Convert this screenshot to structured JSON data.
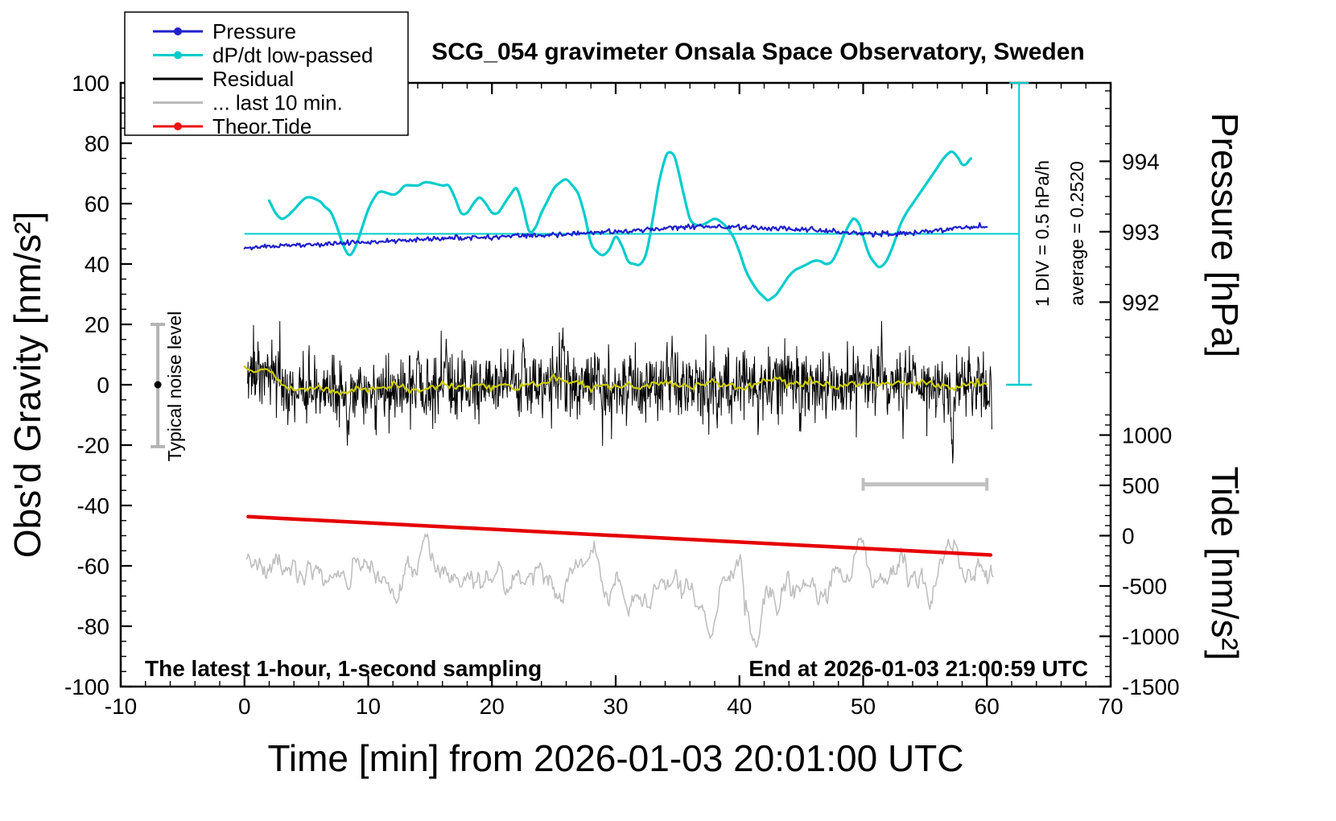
{
  "title": "SCG_054 gravimeter Onsala Space Observatory, Sweden",
  "footer_left": "The latest 1-hour, 1-second sampling",
  "footer_right": "End at 2026-01-03 21:00:59 UTC",
  "axes": {
    "x": {
      "label": "Time [min] from 2026-01-03 20:01:00 UTC",
      "min": -10,
      "max": 70,
      "major": 10,
      "minor": 2,
      "ticks": [
        -10,
        0,
        10,
        20,
        30,
        40,
        50,
        60,
        70
      ]
    },
    "gravity": {
      "label": "Obs'd Gravity [nm/s²]",
      "min": -100,
      "max": 100,
      "major": 20,
      "minor": 5,
      "ticks": [
        -100,
        -80,
        -60,
        -40,
        -20,
        0,
        20,
        40,
        60,
        80,
        100
      ]
    },
    "pressure": {
      "label": "Pressure [hPa]",
      "ticks": [
        992,
        993,
        994
      ],
      "minor_step": 0.25,
      "anchor_hpa": 993,
      "anchor_gravity": 50.7,
      "gravity_per_hpa": 23.33
    },
    "tide": {
      "label": "Tide [nm/s²]",
      "ticks": [
        1000,
        500,
        0,
        -500,
        -1000,
        -1500
      ],
      "minor_step": 100,
      "anchor_tide": 0,
      "anchor_gravity": -50,
      "gravity_per_tide": 0.0333333
    }
  },
  "legend": {
    "items": [
      {
        "label": "Pressure",
        "color": "#2020cc",
        "marker": true
      },
      {
        "label": "dP/dt low-passed",
        "color": "#00cccc",
        "marker": true
      },
      {
        "label": "Residual",
        "color": "#000000",
        "marker": false
      },
      {
        "label": "... last 10 min.",
        "color": "#bbbbbb",
        "marker": false
      },
      {
        "label": "Theor.Tide",
        "color": "#ee1111",
        "marker": true
      }
    ]
  },
  "annotations": {
    "div_scale_label": "1 DIV = 0.5 hPa/h",
    "average_label": "average = 0.2520",
    "noise_label": "Typical noise level",
    "noise_bar": {
      "x": -7,
      "y_low": -20.5,
      "y_high": 20,
      "y_dot": 0,
      "color": "#b4b4b4"
    },
    "div_scale": {
      "x": 62.6,
      "g_bottom": 0,
      "g_top": 100,
      "color": "#00cccc"
    },
    "mean_line": {
      "y": 50,
      "x1": 0,
      "x2": 62.6,
      "color": "#00cccc"
    },
    "gray_scalebar": {
      "x1": 50,
      "x2": 60,
      "y": -33,
      "color": "#c0c0c0"
    }
  },
  "chart_data": {
    "type": "line",
    "title": "SCG_054 gravimeter Onsala Space Observatory, Sweden",
    "xlabel": "Time [min] from 2026-01-03 20:01:00 UTC",
    "ylabel_left": "Obs'd Gravity [nm/s²]",
    "ylabel_right_top": "Pressure [hPa]",
    "ylabel_right_bottom": "Tide [nm/s²]",
    "x_range": [
      -10,
      70
    ],
    "gravity_range": [
      -100,
      100
    ],
    "grid": false,
    "legend_position": "top-left",
    "series": [
      {
        "id": "pressure",
        "name": "Pressure",
        "axis": "pressure",
        "color": "#2020cc",
        "width": 2.2,
        "x_start": 0,
        "x_step": 1,
        "values_hpa": [
          992.78,
          992.785,
          992.79,
          992.8,
          992.81,
          992.815,
          992.825,
          992.83,
          992.84,
          992.85,
          992.855,
          992.86,
          992.87,
          992.875,
          992.885,
          992.89,
          992.9,
          992.91,
          992.915,
          992.92,
          992.93,
          992.935,
          992.94,
          992.945,
          992.95,
          992.955,
          992.965,
          992.975,
          992.985,
          992.99,
          993.0,
          993.01,
          993.02,
          993.03,
          993.045,
          993.055,
          993.065,
          993.075,
          993.08,
          993.075,
          993.065,
          993.055,
          993.05,
          993.045,
          993.04,
          993.03,
          993.02,
          993.01,
          993.0,
          992.985,
          992.975,
          992.97,
          992.96,
          992.97,
          992.985,
          993.0,
          993.02,
          993.04,
          993.06,
          993.075,
          993.08
        ],
        "render": {
          "densify": 620,
          "jitter": 0.38,
          "seed": 11
        }
      },
      {
        "id": "dpdt",
        "name": "dP/dt low-passed",
        "axis": "gravity",
        "color": "#00cccc",
        "width": 3.2,
        "points": [
          [
            2,
            61
          ],
          [
            2.5,
            57
          ],
          [
            3,
            55
          ],
          [
            3.5,
            56
          ],
          [
            4,
            58
          ],
          [
            5,
            62
          ],
          [
            6,
            61
          ],
          [
            6.5,
            59
          ],
          [
            7,
            57
          ],
          [
            7.5,
            52
          ],
          [
            8,
            46
          ],
          [
            8.5,
            43
          ],
          [
            9,
            46
          ],
          [
            9.5,
            52
          ],
          [
            10,
            58
          ],
          [
            10.5,
            62
          ],
          [
            11,
            64
          ],
          [
            12,
            63
          ],
          [
            12.5,
            64
          ],
          [
            13,
            66
          ],
          [
            14,
            66
          ],
          [
            14.5,
            67
          ],
          [
            15,
            67
          ],
          [
            16,
            66
          ],
          [
            16.5,
            66
          ],
          [
            17,
            62
          ],
          [
            17.5,
            57
          ],
          [
            18,
            57
          ],
          [
            18.5,
            60
          ],
          [
            19,
            62
          ],
          [
            19.5,
            60
          ],
          [
            20,
            57
          ],
          [
            20.5,
            57
          ],
          [
            21,
            60
          ],
          [
            21.5,
            63
          ],
          [
            22,
            65
          ],
          [
            22.5,
            59
          ],
          [
            23,
            51
          ],
          [
            23.5,
            52
          ],
          [
            24,
            57
          ],
          [
            24.5,
            61
          ],
          [
            25,
            65
          ],
          [
            25.5,
            67
          ],
          [
            26,
            68
          ],
          [
            26.5,
            66
          ],
          [
            27,
            63
          ],
          [
            27.5,
            56
          ],
          [
            28,
            47
          ],
          [
            28.5,
            44
          ],
          [
            29,
            43
          ],
          [
            29.5,
            45
          ],
          [
            30,
            49
          ],
          [
            30.5,
            46
          ],
          [
            31,
            41
          ],
          [
            31.5,
            40
          ],
          [
            32,
            40
          ],
          [
            32.5,
            44
          ],
          [
            33,
            55
          ],
          [
            33.5,
            67
          ],
          [
            34,
            75
          ],
          [
            34.3,
            77
          ],
          [
            34.7,
            76
          ],
          [
            35,
            72
          ],
          [
            35.5,
            63
          ],
          [
            36,
            55
          ],
          [
            36.5,
            53
          ],
          [
            37,
            53
          ],
          [
            37.5,
            54
          ],
          [
            38,
            55
          ],
          [
            38.5,
            54
          ],
          [
            39,
            52
          ],
          [
            39.5,
            49
          ],
          [
            40,
            44
          ],
          [
            40.5,
            38
          ],
          [
            41,
            34
          ],
          [
            41.5,
            31
          ],
          [
            42,
            29
          ],
          [
            42.3,
            28
          ],
          [
            42.7,
            29
          ],
          [
            43,
            30
          ],
          [
            43.5,
            33
          ],
          [
            44,
            36
          ],
          [
            44.5,
            38
          ],
          [
            45,
            39
          ],
          [
            45.5,
            40
          ],
          [
            46,
            41
          ],
          [
            46.5,
            41
          ],
          [
            47,
            40
          ],
          [
            47.5,
            41
          ],
          [
            48,
            45
          ],
          [
            48.5,
            50
          ],
          [
            49,
            54
          ],
          [
            49.3,
            55
          ],
          [
            49.7,
            53
          ],
          [
            50,
            49
          ],
          [
            50.5,
            43
          ],
          [
            51,
            40
          ],
          [
            51.3,
            39
          ],
          [
            51.7,
            40
          ],
          [
            52,
            42
          ],
          [
            52.5,
            47
          ],
          [
            53,
            53
          ],
          [
            53.5,
            57
          ],
          [
            54,
            60
          ],
          [
            54.5,
            63
          ],
          [
            55,
            66
          ],
          [
            55.5,
            69
          ],
          [
            56,
            72
          ],
          [
            56.5,
            75
          ],
          [
            57,
            77
          ],
          [
            57.3,
            77
          ],
          [
            57.7,
            75
          ],
          [
            58,
            73
          ],
          [
            58.3,
            73
          ],
          [
            58.5,
            74
          ],
          [
            58.7,
            75
          ]
        ],
        "render": {
          "smooth": true
        }
      },
      {
        "id": "residual",
        "name": "Residual",
        "axis": "gravity",
        "color": "#000000",
        "width": 1,
        "generator": {
          "kind": "noise",
          "seed": 42,
          "n": 1500,
          "x_start": 0.25,
          "x_end": 60.4,
          "std": 5.5,
          "spike_prob": 0.03,
          "spike_std": 9,
          "clamp": [
            -27,
            21
          ],
          "baseline": "residual_mean",
          "anchors": [
            {
              "x": 8.4,
              "a": -17,
              "w": 0.15
            },
            {
              "x": 10.6,
              "a": -10,
              "w": 0.1
            },
            {
              "x": 14.0,
              "a": 13,
              "w": 0.12
            },
            {
              "x": 16.3,
              "a": 12,
              "w": 0.1
            },
            {
              "x": 22.5,
              "a": 11,
              "w": 0.1
            },
            {
              "x": 25.7,
              "a": 12,
              "w": 0.1
            },
            {
              "x": 28.9,
              "a": -11,
              "w": 0.12
            },
            {
              "x": 34.6,
              "a": 11,
              "w": 0.1
            },
            {
              "x": 38.2,
              "a": -10,
              "w": 0.1
            },
            {
              "x": 41.5,
              "a": -11,
              "w": 0.1
            },
            {
              "x": 44.9,
              "a": -12,
              "w": 0.1
            },
            {
              "x": 51.5,
              "a": 10,
              "w": 0.1
            },
            {
              "x": 57.2,
              "a": -19,
              "w": 0.15
            }
          ]
        }
      },
      {
        "id": "residual_mean",
        "name": "Residual running mean",
        "axis": "gravity",
        "color": "#cccc00",
        "width": 2.2,
        "x_start": 0,
        "x_step": 1,
        "values": [
          6,
          5,
          5,
          0,
          -2,
          -2,
          -1,
          -2,
          -3,
          -1,
          -2,
          -1,
          0,
          -1,
          -2,
          -1,
          0,
          -1,
          -1,
          0,
          -1,
          0,
          -1,
          0,
          0,
          2,
          1,
          0,
          -1,
          0,
          -1,
          0,
          -1,
          0,
          1,
          0,
          -1,
          0,
          1,
          0,
          -1,
          0,
          1,
          2,
          1,
          0,
          1,
          0,
          -1,
          0,
          0,
          1,
          0,
          1,
          0,
          1,
          0,
          -1,
          0,
          0,
          0
        ],
        "render": {
          "densify": 320,
          "jitter": 0.6,
          "seed": 5
        }
      },
      {
        "id": "last10",
        "name": "... last 10 min.",
        "axis": "gravity",
        "color": "#bfbfbf",
        "width": 1.6,
        "generator": {
          "kind": "walk",
          "seed": 7,
          "n": 650,
          "x_start": 0.2,
          "x_end": 60.5,
          "mean": -63,
          "sigma": 2.2,
          "pull": 0.12,
          "clamp": [
            -88,
            -44
          ],
          "anchors": [
            {
              "x": 14.6,
              "a": 16,
              "w": 0.5
            },
            {
              "x": 20.5,
              "a": 8,
              "w": 0.5
            },
            {
              "x": 26.3,
              "a": 9,
              "w": 0.4
            },
            {
              "x": 31.0,
              "a": -7,
              "w": 0.5
            },
            {
              "x": 37.7,
              "a": -11,
              "w": 0.5
            },
            {
              "x": 41.2,
              "a": -23,
              "w": 0.7
            },
            {
              "x": 43.1,
              "a": -12,
              "w": 0.5
            },
            {
              "x": 47.8,
              "a": 10,
              "w": 0.5
            },
            {
              "x": 49.9,
              "a": 13,
              "w": 0.6
            },
            {
              "x": 53.0,
              "a": 10,
              "w": 0.5
            },
            {
              "x": 55.4,
              "a": -8,
              "w": 0.4
            },
            {
              "x": 57.0,
              "a": 9,
              "w": 0.6
            }
          ]
        }
      },
      {
        "id": "tide",
        "name": "Theor.Tide",
        "axis": "gravity",
        "color": "#e60000",
        "width": 4.5,
        "points": [
          [
            0.3,
            -43.7
          ],
          [
            60.3,
            -56.4
          ]
        ],
        "points_tide_units": [
          [
            0.3,
            189
          ],
          [
            60.3,
            -192
          ]
        ]
      }
    ]
  }
}
